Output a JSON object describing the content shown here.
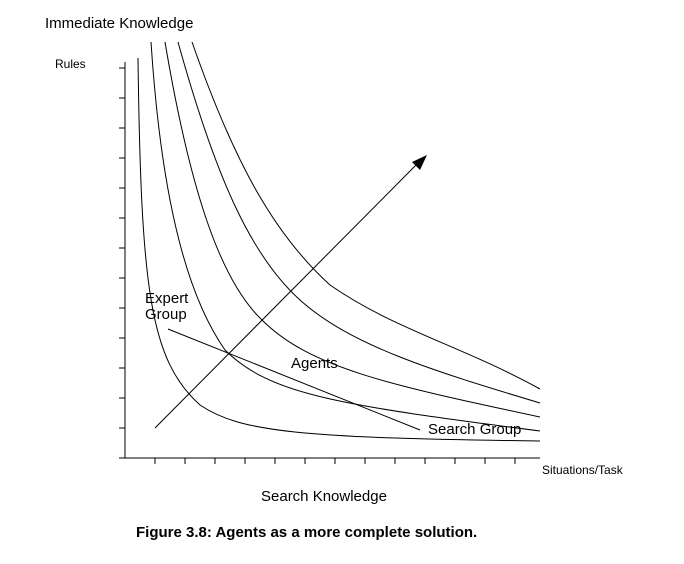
{
  "labels": {
    "top_title": "Immediate Knowledge",
    "y_axis": "Rules",
    "x_axis": "Situations/Task",
    "bottom_label": "Search Knowledge",
    "expert_group_line1": "Expert",
    "expert_group_line2": "Group",
    "agents": "Agents",
    "search_group": "Search Group",
    "caption": "Figure 3.8:  Agents as a more complete solution."
  },
  "colors": {
    "ink": "#000000",
    "background": "#ffffff"
  }
}
